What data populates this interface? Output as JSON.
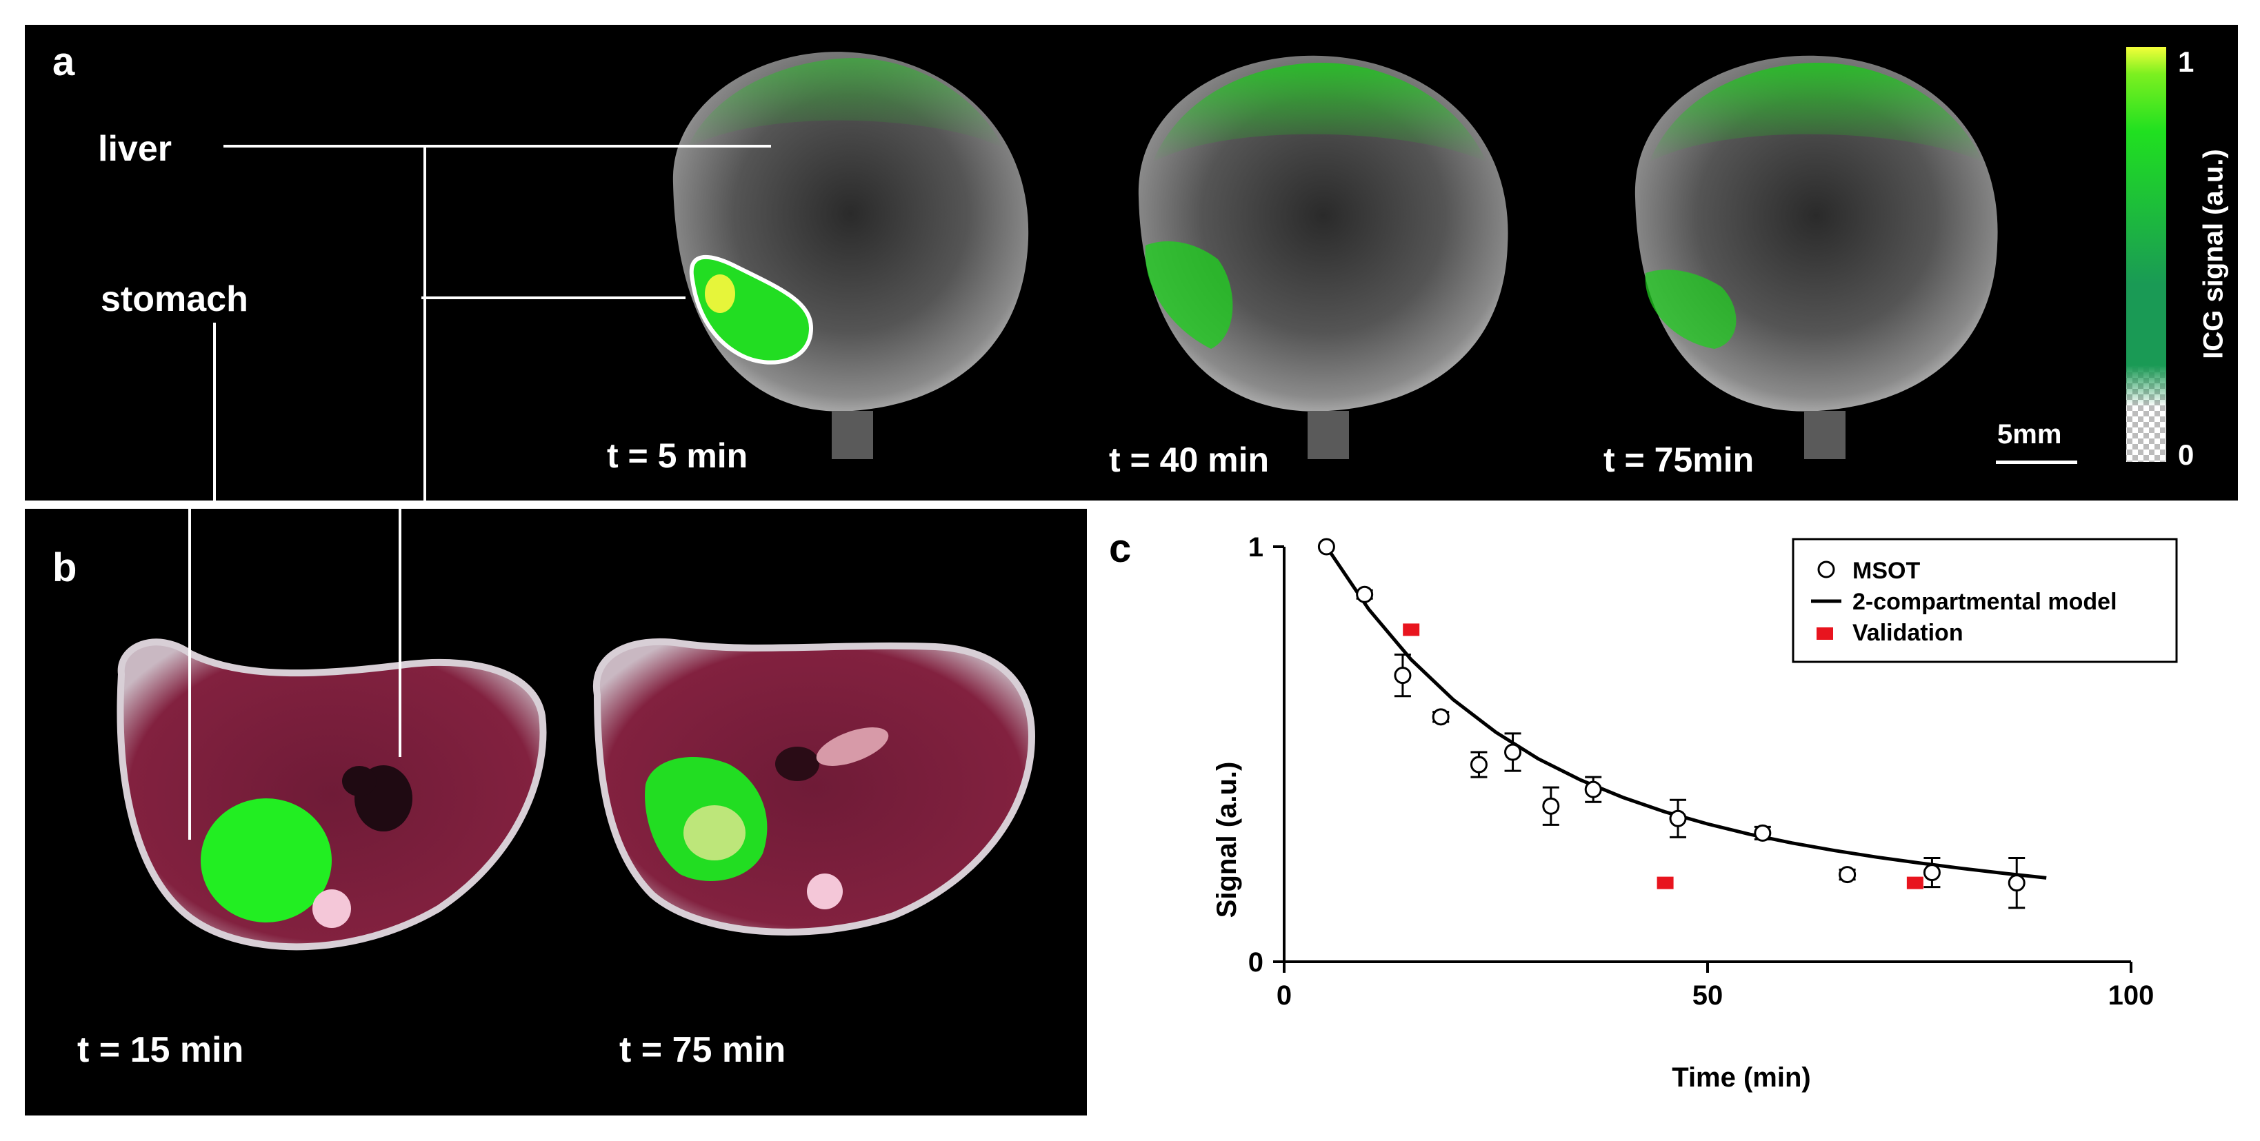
{
  "panel_a": {
    "letter": "a",
    "labels": {
      "liver": "liver",
      "stomach": "stomach"
    },
    "frames": [
      {
        "time_label": "t = 5 min"
      },
      {
        "time_label": "t = 40 min"
      },
      {
        "time_label": "t = 75min"
      }
    ],
    "scale_bar": "5mm",
    "colorbar": {
      "title": "ICG signal (a.u.)",
      "max_label": "1",
      "min_label": "0"
    }
  },
  "panel_b": {
    "letter": "b",
    "frames": [
      {
        "time_label": "t = 15 min"
      },
      {
        "time_label": "t = 75 min"
      }
    ]
  },
  "panel_c": {
    "letter": "c"
  },
  "colors": {
    "signal_green": "#22e01a",
    "tissue": "#7c1f3c",
    "validation_red": "#e8141e"
  },
  "chart_data": {
    "type": "scatter",
    "xlabel": "Time (min)",
    "ylabel": "Signal (a.u.)",
    "xlim": [
      0,
      100
    ],
    "ylim": [
      0,
      1
    ],
    "xticks": [
      "0",
      "50",
      "100"
    ],
    "yticks": [
      "0",
      "1"
    ],
    "legend_position": "top-right",
    "series": [
      {
        "name": "MSOT",
        "marker": "open-circle",
        "x": [
          5,
          9.5,
          14,
          18.5,
          23,
          27,
          31.5,
          36.5,
          46.5,
          56.5,
          66.5,
          76.5,
          86.5
        ],
        "y": [
          1.0,
          0.885,
          0.69,
          0.59,
          0.475,
          0.505,
          0.375,
          0.415,
          0.345,
          0.31,
          0.21,
          0.215,
          0.19
        ],
        "err": [
          0.0,
          0.01,
          0.05,
          0.012,
          0.03,
          0.045,
          0.045,
          0.03,
          0.045,
          0.015,
          0.012,
          0.035,
          0.06
        ]
      },
      {
        "name": "2-compartmental model",
        "marker": "line",
        "x": [
          5,
          10,
          15,
          20,
          25,
          30,
          35,
          40,
          45,
          50,
          55,
          60,
          65,
          70,
          75,
          80,
          85,
          90
        ],
        "y": [
          1.0,
          0.849,
          0.728,
          0.631,
          0.553,
          0.489,
          0.438,
          0.396,
          0.361,
          0.332,
          0.307,
          0.286,
          0.268,
          0.252,
          0.238,
          0.225,
          0.213,
          0.202
        ]
      },
      {
        "name": "Validation",
        "marker": "red-square",
        "x": [
          15,
          45,
          74.5
        ],
        "y": [
          0.8,
          0.19,
          0.19
        ]
      }
    ]
  }
}
